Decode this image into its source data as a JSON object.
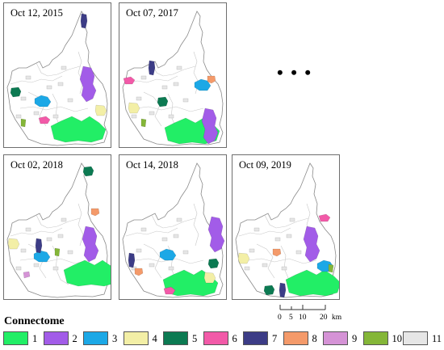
{
  "panels": [
    {
      "id": "p1",
      "date": "Oct 12, 2015",
      "classes": [
        1,
        2,
        3,
        4,
        5,
        6,
        7,
        10,
        11
      ]
    },
    {
      "id": "p2",
      "date": "Oct 07, 2017",
      "classes": [
        1,
        2,
        3,
        4,
        5,
        6,
        7,
        8,
        10,
        11
      ]
    },
    {
      "id": "p3",
      "date": "Oct 02, 2018",
      "classes": [
        1,
        2,
        3,
        4,
        5,
        7,
        8,
        9,
        10,
        11
      ]
    },
    {
      "id": "p4",
      "date": "Oct 14, 2018",
      "classes": [
        1,
        2,
        3,
        4,
        5,
        6,
        7,
        8,
        11
      ]
    },
    {
      "id": "p5",
      "date": "Oct 09, 2019",
      "classes": [
        1,
        2,
        3,
        4,
        5,
        6,
        7,
        8,
        10,
        11
      ]
    }
  ],
  "ellipsis": "• • •",
  "scale_bar": {
    "ticks": [
      "0",
      "5",
      "10",
      "20"
    ],
    "unit": "km"
  },
  "legend": {
    "title": "Connectome",
    "items": [
      {
        "label": "1",
        "color": "#22ee66"
      },
      {
        "label": "2",
        "color": "#a25ce8"
      },
      {
        "label": "3",
        "color": "#1ca8e6"
      },
      {
        "label": "4",
        "color": "#f3efa6"
      },
      {
        "label": "5",
        "color": "#0c7a52"
      },
      {
        "label": "6",
        "color": "#f25aa8"
      },
      {
        "label": "7",
        "color": "#3c3c86"
      },
      {
        "label": "8",
        "color": "#f49a6a"
      },
      {
        "label": "9",
        "color": "#d593d6"
      },
      {
        "label": "10",
        "color": "#84b638"
      },
      {
        "label": "11",
        "color": "#e6e6e6"
      }
    ]
  }
}
